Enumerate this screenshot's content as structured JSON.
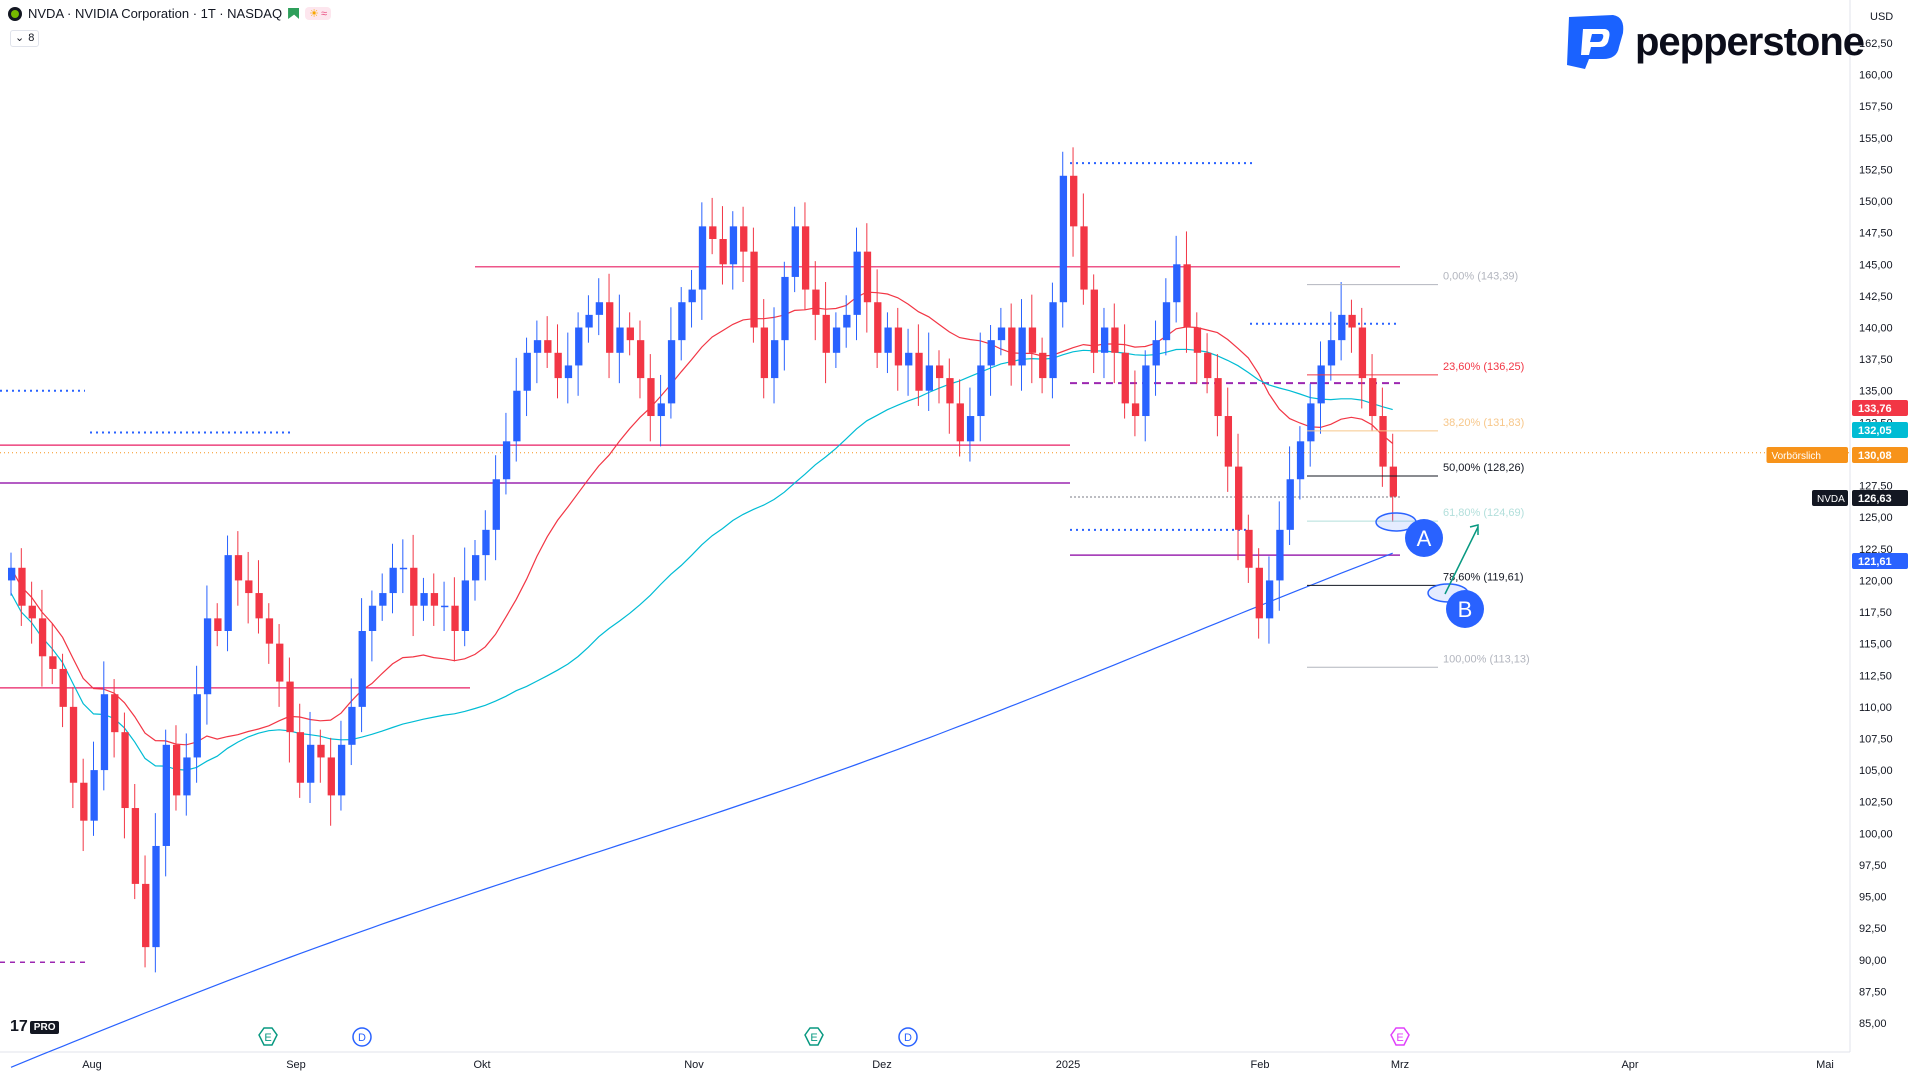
{
  "header": {
    "symbol_line": "NVDA · NVIDIA Corporation · 1T · NASDAQ",
    "indicator_count": "8"
  },
  "brand": {
    "name": "pepperstone",
    "color": "#1a62ff"
  },
  "tv_logo": {
    "text": "17",
    "pro": "PRO"
  },
  "axis": {
    "currency": "USD",
    "labels": [
      "162,50",
      "160,00",
      "157,50",
      "155,00",
      "152,50",
      "150,00",
      "147,50",
      "145,00",
      "142,50",
      "140,00",
      "137,50",
      "135,00",
      "132,50",
      "130,00",
      "127,50",
      "125,00",
      "122,50",
      "120,00",
      "117,50",
      "115,00",
      "112,50",
      "110,00",
      "107,50",
      "105,00",
      "102,50",
      "100,00",
      "97,50",
      "95,00",
      "92,50",
      "90,00",
      "87,50",
      "85,00"
    ],
    "months": [
      "Aug",
      "Sep",
      "Okt",
      "Nov",
      "Dez",
      "2025",
      "Feb",
      "Mrz",
      "Apr",
      "Mai"
    ]
  },
  "price_tags": [
    {
      "label": "",
      "value": "133,76",
      "color": "#f23645"
    },
    {
      "label": "",
      "value": "132,05",
      "color": "#00bcd4"
    },
    {
      "label": "Vorbörslich",
      "value": "130,08",
      "color": "#f7931a"
    },
    {
      "label": "NVDA",
      "value": "126,63",
      "color": "#131722"
    },
    {
      "label": "",
      "value": "121,61",
      "color": "#2962ff"
    }
  ],
  "fib_labels": [
    {
      "text": "0,00% (143,39)",
      "color": "#b2b5be"
    },
    {
      "text": "23,60% (136,25)",
      "color": "#f23645"
    },
    {
      "text": "38,20% (131,83)",
      "color": "#f7c78a"
    },
    {
      "text": "50,00% (128,26)",
      "color": "#131722"
    },
    {
      "text": "61,80% (124,69)",
      "color": "#b2dfdb"
    },
    {
      "text": "78,60% (119,61)",
      "color": "#131722"
    },
    {
      "text": "100,00% (113,13)",
      "color": "#b2b5be"
    }
  ],
  "markers": [
    {
      "label": "A",
      "color": "#2962ff"
    },
    {
      "label": "B",
      "color": "#2962ff"
    }
  ],
  "event_icons": [
    {
      "label": "E",
      "kind": "earnings"
    },
    {
      "label": "D",
      "kind": "dividend"
    },
    {
      "label": "E",
      "kind": "earnings"
    },
    {
      "label": "D",
      "kind": "dividend"
    },
    {
      "label": "E",
      "kind": "earnings-upcoming"
    }
  ],
  "colors": {
    "up": "#2962ff",
    "down": "#f23645",
    "ma_fast": "#f23645",
    "ma_mid": "#00bcd4",
    "ma_slow": "#2962ff"
  },
  "chart_data": {
    "type": "candlestick",
    "symbol": "NVDA",
    "timeframe": "1T",
    "ylim": [
      85,
      162.5
    ],
    "last_price": 126.63,
    "premarket_price": 130.08,
    "x": [
      "Aug",
      "Sep",
      "Okt",
      "Nov",
      "Dez",
      "2025",
      "Feb",
      "Mrz",
      "Apr",
      "Mai"
    ],
    "closes": [
      121,
      118,
      117,
      114,
      113,
      110,
      104,
      101,
      105,
      111,
      108,
      102,
      96,
      91,
      99,
      107,
      103,
      106,
      111,
      117,
      116,
      122,
      120,
      119,
      117,
      115,
      112,
      108,
      104,
      107,
      106,
      103,
      107,
      110,
      116,
      118,
      119,
      121,
      121,
      118,
      119,
      118,
      118,
      116,
      120,
      122,
      124,
      128,
      131,
      135,
      138,
      139,
      138,
      136,
      137,
      140,
      141,
      142,
      138,
      140,
      139,
      136,
      133,
      134,
      139,
      142,
      143,
      148,
      147,
      145,
      148,
      146,
      140,
      136,
      139,
      144,
      148,
      143,
      141,
      138,
      140,
      141,
      146,
      142,
      138,
      140,
      137,
      138,
      135,
      137,
      136,
      134,
      131,
      133,
      137,
      139,
      140,
      137,
      140,
      138,
      136,
      142,
      152,
      148,
      143,
      138,
      140,
      138,
      134,
      133,
      137,
      139,
      142,
      145,
      140,
      138,
      136,
      133,
      129,
      124,
      121,
      117,
      120,
      124,
      128,
      131,
      134,
      137,
      139,
      141,
      140,
      136,
      133,
      129,
      126.63
    ],
    "fib_retracement": {
      "p0": 143.39,
      "p23_6": 136.25,
      "p38_2": 131.83,
      "p50": 128.26,
      "p61_8": 124.69,
      "p78_6": 119.61,
      "p100": 113.13
    }
  }
}
